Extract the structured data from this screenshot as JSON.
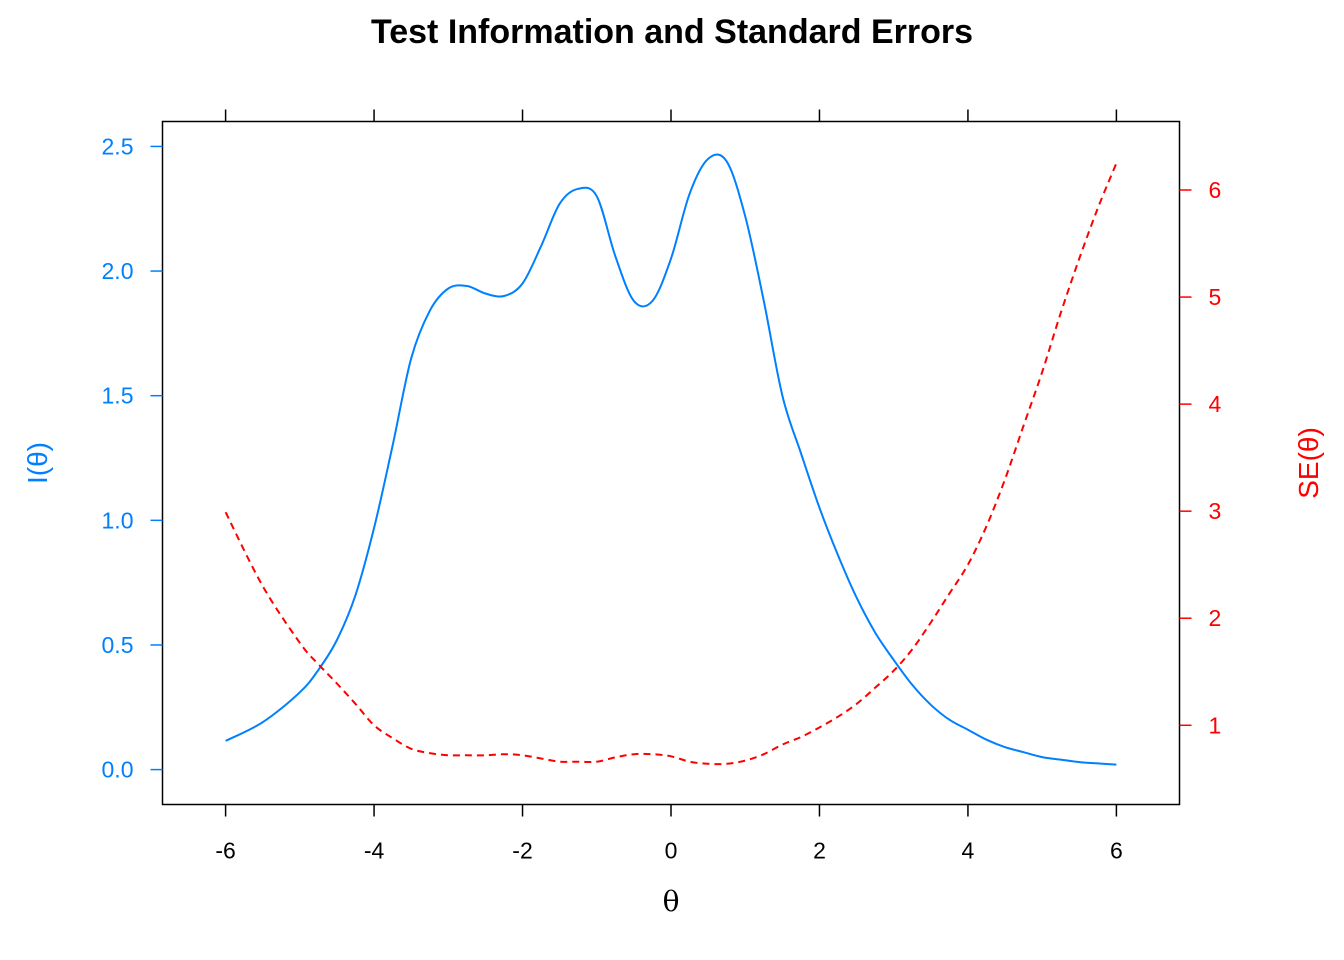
{
  "chart_data": {
    "type": "line",
    "title": "Test Information and Standard Errors",
    "xlabel": "θ",
    "ylabel_left": "I(θ)",
    "ylabel_right": "SE(θ)",
    "xlim": [
      -6.85,
      6.85
    ],
    "ylim_left": [
      -0.14,
      2.6
    ],
    "ylim_right": [
      0.26,
      6.64
    ],
    "x_ticks": [
      -6,
      -4,
      -2,
      0,
      2,
      4,
      6
    ],
    "y_left_ticks": [
      "0.0",
      "0.5",
      "1.0",
      "1.5",
      "2.0",
      "2.5"
    ],
    "y_right_ticks": [
      "1",
      "2",
      "3",
      "4",
      "5",
      "6"
    ],
    "top_ticks": true,
    "grid": false,
    "colors": {
      "info": "#0080ff",
      "se": "#ff0000",
      "text": "#000000",
      "axis": "#000000"
    },
    "series": [
      {
        "axis": "left",
        "style": "solid",
        "x": [
          -6,
          -5.5,
          -5,
          -4.75,
          -4.5,
          -4.25,
          -4,
          -3.75,
          -3.5,
          -3.25,
          -3,
          -2.75,
          -2.5,
          -2.25,
          -2,
          -1.75,
          -1.5,
          -1.25,
          -1,
          -0.75,
          -0.5,
          -0.25,
          0,
          0.25,
          0.5,
          0.75,
          1,
          1.25,
          1.5,
          1.75,
          2,
          2.25,
          2.5,
          2.75,
          3,
          3.25,
          3.5,
          3.75,
          4,
          4.25,
          4.5,
          4.75,
          5,
          5.25,
          5.5,
          5.75,
          6
        ],
        "y": [
          0.115,
          0.19,
          0.31,
          0.4,
          0.52,
          0.7,
          0.97,
          1.3,
          1.65,
          1.84,
          1.93,
          1.94,
          1.91,
          1.9,
          1.95,
          2.1,
          2.27,
          2.33,
          2.3,
          2.06,
          1.88,
          1.88,
          2.05,
          2.31,
          2.45,
          2.44,
          2.22,
          1.88,
          1.5,
          1.27,
          1.05,
          0.86,
          0.69,
          0.55,
          0.44,
          0.34,
          0.26,
          0.2,
          0.16,
          0.12,
          0.09,
          0.07,
          0.05,
          0.04,
          0.03,
          0.025,
          0.02
        ]
      },
      {
        "axis": "right",
        "style": "dashed",
        "x": [
          -6,
          -5.5,
          -5,
          -4.75,
          -4.5,
          -4.25,
          -4,
          -3.75,
          -3.5,
          -3.25,
          -3,
          -2.75,
          -2.5,
          -2.25,
          -2,
          -1.75,
          -1.5,
          -1.25,
          -1,
          -0.75,
          -0.5,
          -0.25,
          0,
          0.25,
          0.5,
          0.75,
          1,
          1.25,
          1.5,
          1.75,
          2,
          2.25,
          2.5,
          2.75,
          3,
          3.25,
          3.5,
          3.75,
          4,
          4.25,
          4.5,
          4.75,
          5,
          5.25,
          5.5,
          5.75,
          6
        ],
        "y": [
          2.99,
          2.3,
          1.77,
          1.57,
          1.39,
          1.2,
          1.0,
          0.88,
          0.78,
          0.74,
          0.72,
          0.72,
          0.72,
          0.73,
          0.72,
          0.69,
          0.66,
          0.66,
          0.66,
          0.7,
          0.73,
          0.73,
          0.71,
          0.66,
          0.64,
          0.64,
          0.67,
          0.73,
          0.82,
          0.89,
          0.98,
          1.08,
          1.2,
          1.35,
          1.51,
          1.71,
          1.96,
          2.23,
          2.5,
          2.86,
          3.3,
          3.8,
          4.3,
          4.85,
          5.36,
          5.83,
          6.25
        ]
      }
    ]
  }
}
